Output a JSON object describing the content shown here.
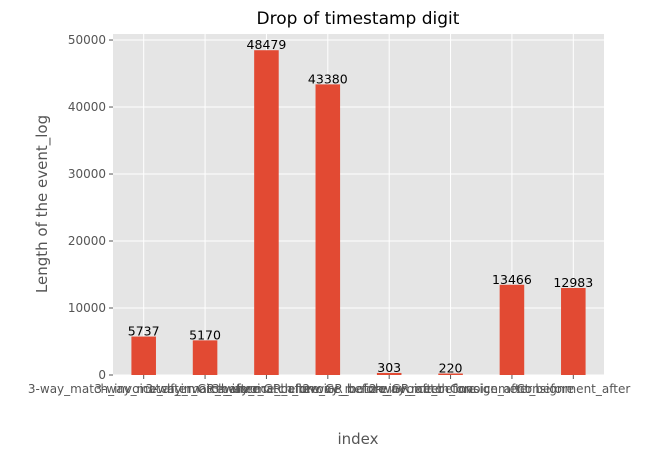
{
  "colors": {
    "bar": "#E24A33",
    "plot_background": "#E5E5E5",
    "grid": "#FFFFFF"
  },
  "chart_data": {
    "type": "bar",
    "title": "Drop of timestamp digit",
    "xlabel": "index",
    "ylabel": "Length of the event_log",
    "categories": [
      "3-way_match_invoice_after_GR_before",
      "3-way_match_invoice_after_GR_after",
      "3-way_match_invoice_before_GR_before",
      "3-way_match_invoice_before_GR_after",
      "2-way_match_invoice_before",
      "2-way_match_invoice_after",
      "Consignment_before",
      "Consignment_after"
    ],
    "values": [
      5737,
      5170,
      48479,
      43380,
      303,
      220,
      13466,
      12983
    ],
    "data_labels": [
      "5737",
      "5170",
      "48479",
      "43380",
      "303",
      "220",
      "13466",
      "12983"
    ],
    "ylim": [
      0,
      50900
    ],
    "yticks": [
      0,
      10000,
      20000,
      30000,
      40000,
      50000
    ],
    "ytick_labels": [
      "0",
      "10000",
      "20000",
      "30000",
      "40000",
      "50000"
    ],
    "grid": true,
    "legend": "none"
  }
}
